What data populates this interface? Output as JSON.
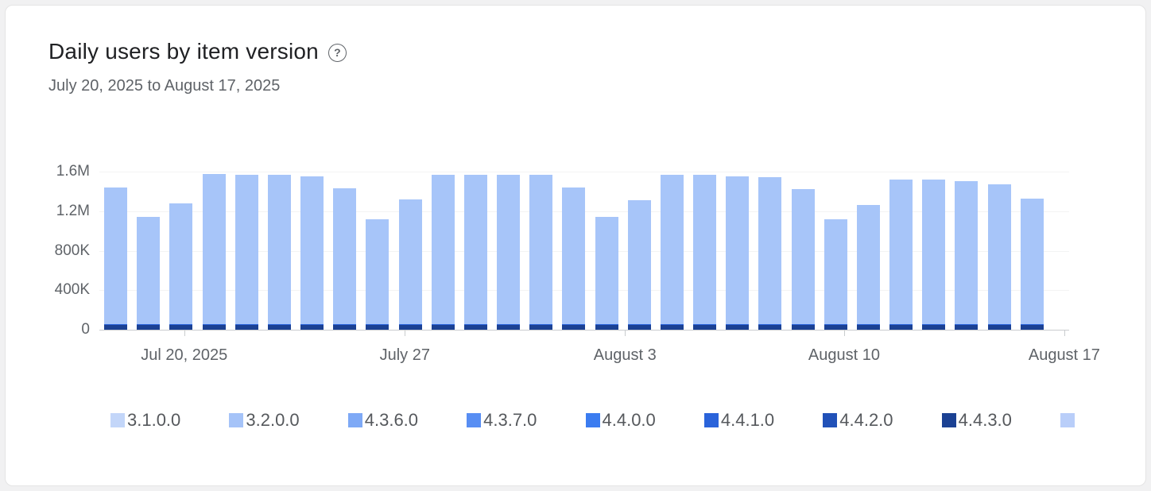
{
  "card": {
    "title": "Daily users by item version",
    "subtitle": "July 20, 2025 to August 17, 2025",
    "help_glyph": "?"
  },
  "chart_data": {
    "type": "bar",
    "stacked": true,
    "title": "Daily users by item version",
    "subtitle": "July 20, 2025 to August 17, 2025",
    "xlabel": "",
    "ylabel": "",
    "unit": "daily users",
    "ylim": [
      0,
      1600000
    ],
    "grid": true,
    "legend_position": "bottom",
    "yticks": [
      {
        "label": "1.6M",
        "value": 1600000
      },
      {
        "label": "1.2M",
        "value": 1200000
      },
      {
        "label": "800K",
        "value": 800000
      },
      {
        "label": "400K",
        "value": 400000
      },
      {
        "label": "0",
        "value": 0
      }
    ],
    "xticks": [
      {
        "label": "Jul 20, 2025",
        "pos_pct": 8.75
      },
      {
        "label": "July 27",
        "pos_pct": 31.5
      },
      {
        "label": "August 3",
        "pos_pct": 54.2
      },
      {
        "label": "August 10",
        "pos_pct": 76.8
      },
      {
        "label": "August 17",
        "pos_pct": 99.5
      }
    ],
    "days": [
      "Jul 20",
      "Jul 21",
      "Jul 22",
      "Jul 23",
      "Jul 24",
      "Jul 25",
      "Jul 26",
      "Jul 27",
      "Jul 28",
      "Jul 29",
      "Jul 30",
      "Jul 31",
      "Aug 1",
      "Aug 2",
      "Aug 3",
      "Aug 4",
      "Aug 5",
      "Aug 6",
      "Aug 7",
      "Aug 8",
      "Aug 9",
      "Aug 10",
      "Aug 11",
      "Aug 12",
      "Aug 13",
      "Aug 14",
      "Aug 15",
      "Aug 16",
      "Aug 17"
    ],
    "totals": [
      1440000,
      1140000,
      1280000,
      1580000,
      1570000,
      1570000,
      1550000,
      1430000,
      1120000,
      1320000,
      1570000,
      1570000,
      1570000,
      1570000,
      1440000,
      1140000,
      1310000,
      1570000,
      1570000,
      1550000,
      1540000,
      1420000,
      1120000,
      1260000,
      1520000,
      1520000,
      1500000,
      1470000,
      1330000
    ],
    "series_stack_bottom_to_top": [
      {
        "name": "4.4.3.0",
        "color": "#1b4193",
        "value_per_day": 45000
      },
      {
        "name": "4.4.1.0",
        "color": "#2a63da",
        "value_per_day": 12000
      },
      {
        "name": "3.2.0.0",
        "color": "#a7c5f9",
        "value_per_day": "remainder"
      }
    ],
    "legend": [
      {
        "label": "3.1.0.0",
        "color": "#c3d6f9"
      },
      {
        "label": "3.2.0.0",
        "color": "#a5c3f8"
      },
      {
        "label": "4.3.6.0",
        "color": "#7ea9f6"
      },
      {
        "label": "4.3.7.0",
        "color": "#588ef3"
      },
      {
        "label": "4.4.0.0",
        "color": "#3b7cf0"
      },
      {
        "label": "4.4.1.0",
        "color": "#2a63da"
      },
      {
        "label": "4.4.2.0",
        "color": "#2151b8"
      },
      {
        "label": "4.4.3.0",
        "color": "#1b4193"
      },
      {
        "label": "",
        "color": "#b9cef9",
        "truncated": true
      }
    ]
  }
}
